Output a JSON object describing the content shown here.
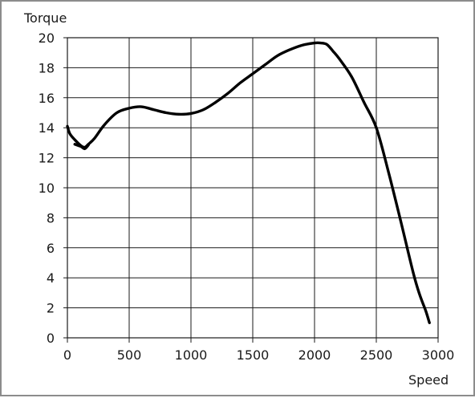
{
  "chart_data": {
    "type": "line",
    "title": "",
    "xlabel": "Speed",
    "ylabel": "Torque",
    "xlim": [
      0,
      3000
    ],
    "ylim": [
      0,
      20
    ],
    "xticks": [
      0,
      500,
      1000,
      1500,
      2000,
      2500,
      3000
    ],
    "yticks": [
      0,
      2,
      4,
      6,
      8,
      10,
      12,
      14,
      16,
      18,
      20
    ],
    "grid": true,
    "line_color": "#000000",
    "grid_color": "#1a1a1a",
    "series": [
      {
        "x": [
          0,
          20,
          60,
          110,
          140,
          170,
          220,
          300,
          400,
          500,
          600,
          700,
          800,
          900,
          1000,
          1100,
          1200,
          1300,
          1400,
          1500,
          1600,
          1700,
          1800,
          1900,
          2000,
          2050,
          2100,
          2150,
          2200,
          2300,
          2400,
          2500,
          2600,
          2700,
          2800,
          2850,
          2900,
          2930
        ],
        "y": [
          14.1,
          13.6,
          13.2,
          12.8,
          12.7,
          12.9,
          13.3,
          14.2,
          15.0,
          15.3,
          15.4,
          15.2,
          15.0,
          14.9,
          14.95,
          15.2,
          15.7,
          16.3,
          17.0,
          17.6,
          18.2,
          18.8,
          19.2,
          19.5,
          19.65,
          19.65,
          19.55,
          19.1,
          18.6,
          17.4,
          15.7,
          14.0,
          11.0,
          7.7,
          4.3,
          2.9,
          1.8,
          1.0
        ]
      }
    ],
    "annotations": [
      {
        "x": [
          60,
          110,
          140,
          170
        ],
        "y": [
          12.9,
          12.75,
          12.6,
          12.85
        ]
      }
    ]
  }
}
